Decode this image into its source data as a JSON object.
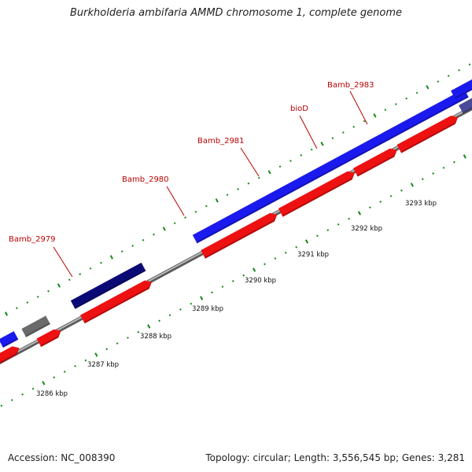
{
  "title": "Burkholderia ambifaria AMMD chromosome 1, complete genome",
  "footer": {
    "accession": "Accession: NC_008390",
    "summary": "Topology: circular; Length: 3,556,545 bp; Genes: 3,281"
  },
  "colors": {
    "gene_blue": "#1a1aee",
    "gene_red": "#ee1111",
    "gene_navy": "#0a0a77",
    "gene_gray": "#6a6a6a",
    "gene_slate": "#4a4a99",
    "label_red": "#bb0000",
    "tick_green": "#118811",
    "backbone": "#8a8a8a"
  },
  "scale_labels": [
    "3286 kbp",
    "3287 kbp",
    "3288 kbp",
    "3289 kbp",
    "3290 kbp",
    "3291 kbp",
    "3292 kbp",
    "3293 kbp"
  ],
  "gene_labels": [
    "Bamb_2979",
    "Bamb_2980",
    "Bamb_2981",
    "bioD",
    "Bamb_2983"
  ]
}
